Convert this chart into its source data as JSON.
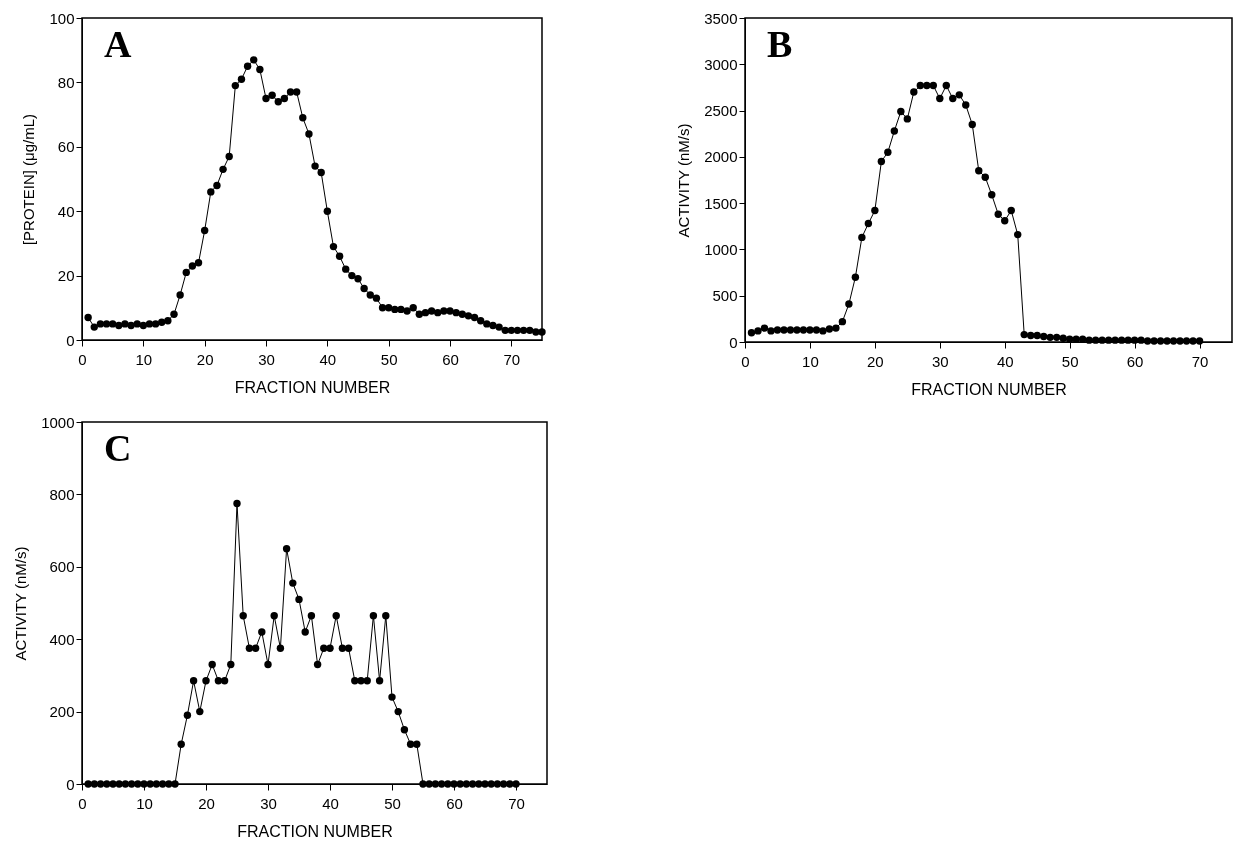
{
  "chart_data": [
    {
      "type": "line",
      "annotations": [
        "A"
      ],
      "xlabel": "FRACTION NUMBER",
      "ylabel": "[PROTEIN]  (μg/mL)",
      "marker": "circle",
      "line_style": "solid",
      "grid": false,
      "x": [
        1,
        2,
        3,
        4,
        5,
        6,
        7,
        8,
        9,
        10,
        11,
        12,
        13,
        14,
        15,
        16,
        17,
        18,
        19,
        20,
        21,
        22,
        23,
        24,
        25,
        26,
        27,
        28,
        29,
        30,
        31,
        32,
        33,
        34,
        35,
        36,
        37,
        38,
        39,
        40,
        41,
        42,
        43,
        44,
        45,
        46,
        47,
        48,
        49,
        50,
        51,
        52,
        53,
        54,
        55,
        56,
        57,
        58,
        59,
        60,
        61,
        62,
        63,
        64,
        65,
        66,
        67,
        68,
        69,
        70,
        71,
        72,
        73,
        74,
        75
      ],
      "series": [
        {
          "color": "#000000",
          "values": [
            7,
            4,
            5,
            5,
            5,
            4.5,
            5,
            4.5,
            5,
            4.5,
            5,
            5,
            5.5,
            6,
            8,
            14,
            21,
            23,
            24,
            34,
            46,
            48,
            53,
            57,
            79,
            81,
            85,
            87,
            84,
            75,
            76,
            74,
            75,
            77,
            77,
            69,
            64,
            54,
            52,
            40,
            29,
            26,
            22,
            20,
            19,
            16,
            14,
            13,
            10,
            10,
            9.5,
            9.5,
            9,
            10,
            8,
            8.5,
            9,
            8.5,
            9,
            9,
            8.5,
            8,
            7.5,
            7,
            6,
            5,
            4.5,
            4,
            3,
            3,
            3,
            3,
            3,
            2.5,
            2.5
          ]
        }
      ],
      "xlim": [
        0,
        75
      ],
      "xticks": [
        0,
        10,
        20,
        30,
        40,
        50,
        60,
        70
      ],
      "ylim": [
        0,
        100
      ],
      "yticks": [
        0,
        20,
        40,
        60,
        80,
        100
      ]
    },
    {
      "type": "line",
      "annotations": [
        "B"
      ],
      "xlabel": "FRACTION NUMBER",
      "ylabel": "ACTIVITY   (nM/s)",
      "marker": "circle",
      "line_style": "solid",
      "grid": false,
      "x": [
        1,
        2,
        3,
        4,
        5,
        6,
        7,
        8,
        9,
        10,
        11,
        12,
        13,
        14,
        15,
        16,
        17,
        18,
        19,
        20,
        21,
        22,
        23,
        24,
        25,
        26,
        27,
        28,
        29,
        30,
        31,
        32,
        33,
        34,
        35,
        36,
        37,
        38,
        39,
        40,
        41,
        42,
        43,
        44,
        45,
        46,
        47,
        48,
        49,
        50,
        51,
        52,
        53,
        54,
        55,
        56,
        57,
        58,
        59,
        60,
        61,
        62,
        63,
        64,
        65,
        66,
        67,
        68,
        69,
        70
      ],
      "series": [
        {
          "color": "#000000",
          "values": [
            100,
            120,
            150,
            120,
            130,
            130,
            130,
            130,
            130,
            130,
            130,
            120,
            140,
            150,
            220,
            410,
            700,
            1130,
            1280,
            1420,
            1950,
            2050,
            2280,
            2490,
            2410,
            2700,
            2770,
            2770,
            2770,
            2630,
            2770,
            2630,
            2670,
            2560,
            2350,
            1850,
            1780,
            1590,
            1380,
            1310,
            1420,
            1160,
            80,
            70,
            70,
            60,
            50,
            50,
            40,
            30,
            30,
            30,
            20,
            20,
            20,
            20,
            20,
            20,
            20,
            20,
            20,
            10,
            10,
            10,
            10,
            10,
            10,
            10,
            10,
            10
          ]
        }
      ],
      "xlim": [
        0,
        75
      ],
      "xticks": [
        0,
        10,
        20,
        30,
        40,
        50,
        60,
        70
      ],
      "ylim": [
        0,
        3500
      ],
      "yticks": [
        0,
        500,
        1000,
        1500,
        2000,
        2500,
        3000,
        3500
      ]
    },
    {
      "type": "line",
      "annotations": [
        "C"
      ],
      "xlabel": "FRACTION NUMBER",
      "ylabel": "ACTIVITY   (nM/s)",
      "marker": "circle",
      "line_style": "solid",
      "grid": false,
      "x": [
        1,
        2,
        3,
        4,
        5,
        6,
        7,
        8,
        9,
        10,
        11,
        12,
        13,
        14,
        15,
        16,
        17,
        18,
        19,
        20,
        21,
        22,
        23,
        24,
        25,
        26,
        27,
        28,
        29,
        30,
        31,
        32,
        33,
        34,
        35,
        36,
        37,
        38,
        39,
        40,
        41,
        42,
        43,
        44,
        45,
        46,
        47,
        48,
        49,
        50,
        51,
        52,
        53,
        54,
        55,
        56,
        57,
        58,
        59,
        60,
        61,
        62,
        63,
        64,
        65,
        66,
        67,
        68,
        69,
        70
      ],
      "series": [
        {
          "color": "#000000",
          "values": [
            0,
            0,
            0,
            0,
            0,
            0,
            0,
            0,
            0,
            0,
            0,
            0,
            0,
            0,
            0,
            110,
            190,
            285,
            200,
            285,
            330,
            285,
            285,
            330,
            775,
            465,
            375,
            375,
            420,
            330,
            465,
            375,
            650,
            555,
            510,
            420,
            465,
            330,
            375,
            375,
            465,
            375,
            375,
            285,
            285,
            285,
            465,
            285,
            465,
            240,
            200,
            150,
            110,
            110,
            0,
            0,
            0,
            0,
            0,
            0,
            0,
            0,
            0,
            0,
            0,
            0,
            0,
            0,
            0,
            0
          ]
        }
      ],
      "xlim": [
        0,
        75
      ],
      "xticks": [
        0,
        10,
        20,
        30,
        40,
        50,
        60,
        70
      ],
      "ylim": [
        0,
        1000
      ],
      "yticks": [
        0,
        200,
        400,
        600,
        800,
        1000
      ]
    }
  ]
}
